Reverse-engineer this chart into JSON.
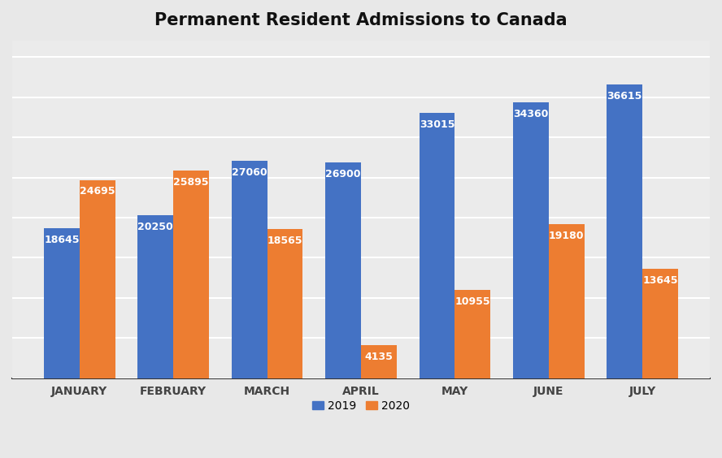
{
  "title": "Permanent Resident Admissions to Canada",
  "months": [
    "JANUARY",
    "FEBRUARY",
    "MARCH",
    "APRIL",
    "MAY",
    "JUNE",
    "JULY"
  ],
  "values_2019": [
    18645,
    20250,
    27060,
    26900,
    33015,
    34360,
    36615
  ],
  "values_2020": [
    24695,
    25895,
    18565,
    4135,
    10955,
    19180,
    13645
  ],
  "color_2019": "#4472C4",
  "color_2020": "#ED7D31",
  "label_2019": "2019",
  "label_2020": "2020",
  "label_color": "#FFFFFF",
  "bar_width": 0.38,
  "ylim": [
    0,
    42000
  ],
  "title_fontsize": 15,
  "label_fontsize": 9,
  "tick_fontsize": 10,
  "legend_fontsize": 10,
  "bg_color": "#E8E8E8",
  "ax_bg_color": "#EBEBEB",
  "gridcolor": "#FFFFFF",
  "grid_linewidth": 1.5,
  "spine_color": "#333333"
}
